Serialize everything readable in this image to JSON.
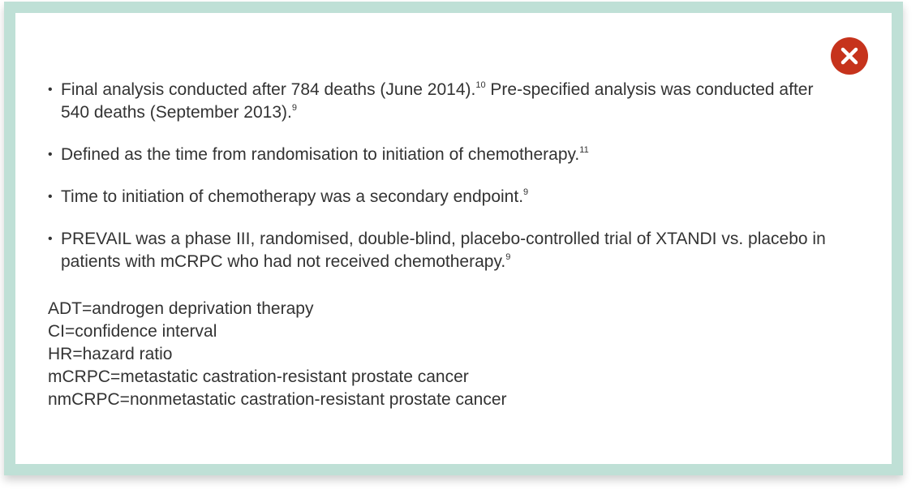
{
  "close_icon": "close-icon",
  "colors": {
    "frame_border": "#bfe0d6",
    "close_button": "#c6331c",
    "text": "#333333"
  },
  "notes": [
    {
      "text": "Final analysis conducted after 784 deaths (June 2014).",
      "ref": "10",
      "text2": " Pre-specified analysis was conducted after 540 deaths (September 2013).",
      "ref2": "9"
    },
    {
      "text": "Defined as the time from randomisation to initiation of chemotherapy.",
      "ref": "11"
    },
    {
      "text": "Time to initiation of chemotherapy was a secondary endpoint.",
      "ref": "9"
    },
    {
      "text": "PREVAIL was a phase III, randomised, double-blind, placebo-controlled trial of XTANDI vs. placebo in patients with mCRPC who had not received chemotherapy.",
      "ref": "9"
    }
  ],
  "abbreviations": [
    "ADT=androgen deprivation therapy",
    "CI=confidence interval",
    "HR=hazard ratio",
    "mCRPC=metastatic castration-resistant prostate cancer",
    "nmCRPC=nonmetastatic castration-resistant prostate cancer"
  ]
}
